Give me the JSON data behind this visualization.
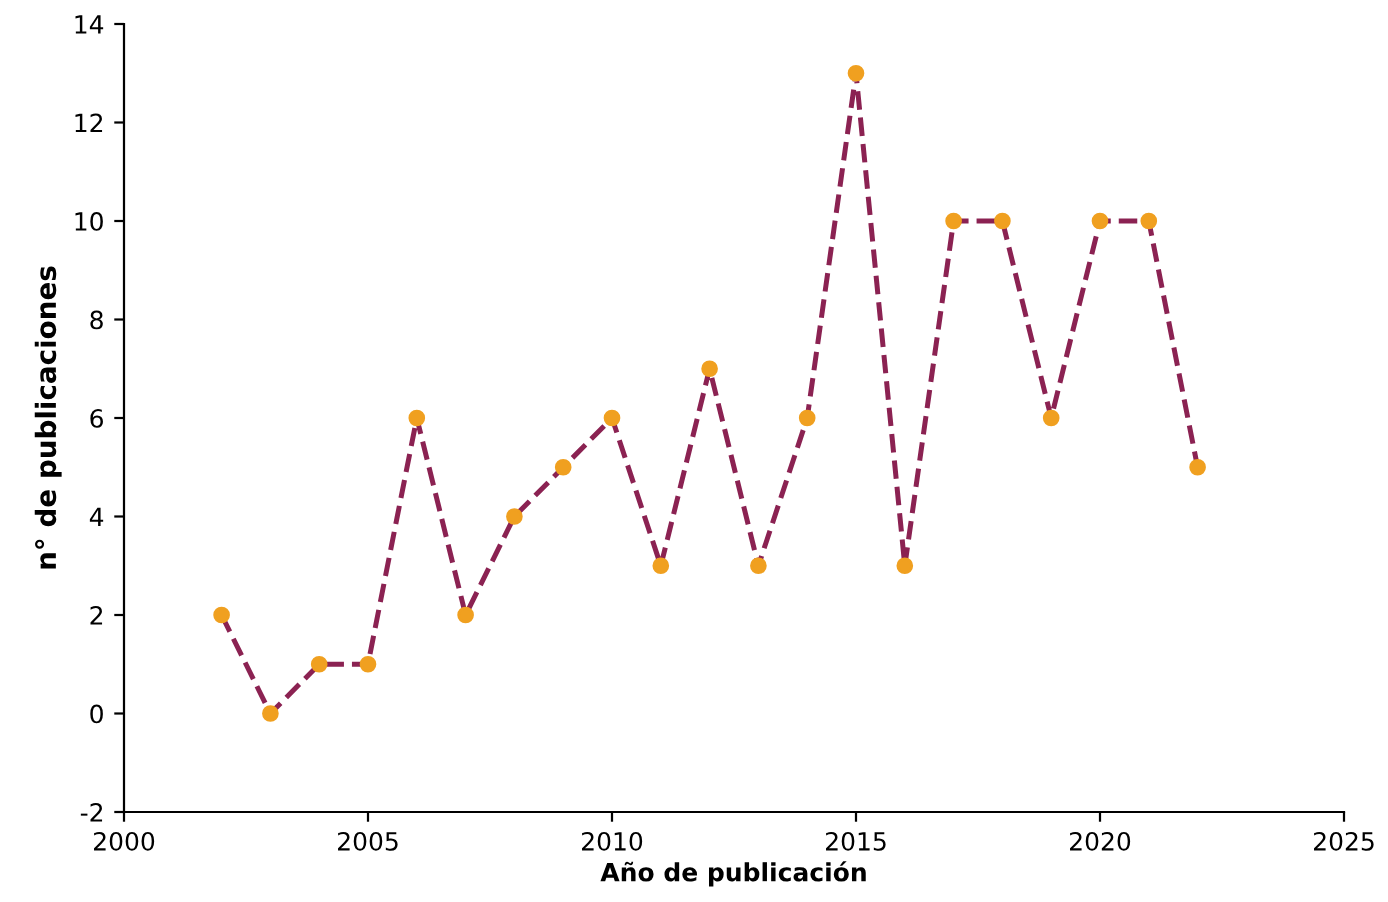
{
  "chart_data": {
    "type": "line",
    "xlabel": "Año de publicación",
    "ylabel": "n° de publicaciones",
    "x": [
      2002,
      2003,
      2004,
      2005,
      2006,
      2007,
      2008,
      2009,
      2010,
      2011,
      2012,
      2013,
      2014,
      2015,
      2016,
      2017,
      2018,
      2019,
      2020,
      2021,
      2022
    ],
    "series": [
      {
        "color": "#8b2252",
        "colors": [
          "#f0a020",
          "#f0a020",
          "#f0a020",
          "#f0a020",
          "#f0a020",
          "#f0a020",
          "#f0a020",
          "#f0a020",
          "#f0a020",
          "#f0a020",
          "#f0a020",
          "#f0a020",
          "#f0a020",
          "#f0a020",
          "#f0a020",
          "#f0a020",
          "#f0a020",
          "#f0a020",
          "#f0a020",
          "#f0a020",
          "#f0a020"
        ],
        "values": [
          2,
          0,
          1,
          1,
          6,
          2,
          4,
          5,
          6,
          3,
          7,
          3,
          6,
          13,
          3,
          10,
          10,
          6,
          10,
          10,
          5
        ]
      }
    ],
    "xlim": [
      2000,
      2025
    ],
    "xticks": [
      2000,
      2005,
      2010,
      2015,
      2020,
      2025
    ],
    "ylim": [
      -2,
      14
    ],
    "yticks": [
      -2,
      0,
      2,
      4,
      6,
      8,
      10,
      12,
      14
    ],
    "grid": false,
    "legend": false,
    "marker": "circle",
    "line_style": "dashed"
  }
}
